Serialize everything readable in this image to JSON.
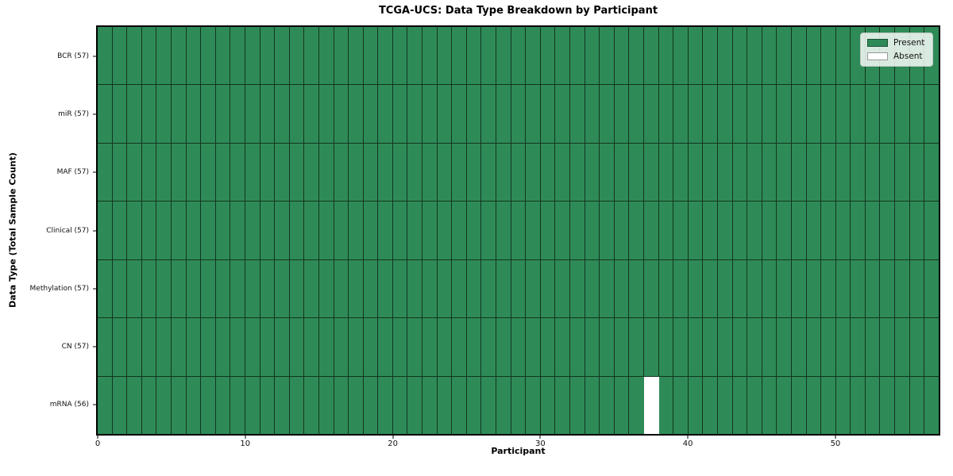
{
  "chart_data": {
    "type": "heatmap",
    "title": "TCGA-UCS: Data Type Breakdown by Participant",
    "xlabel": "Participant",
    "ylabel": "Data Type (Total Sample Count)",
    "n_participants": 57,
    "xlim": [
      0,
      57
    ],
    "x_ticks": [
      0,
      10,
      20,
      30,
      40,
      50
    ],
    "rows": [
      {
        "label": "BCR (57)",
        "data_type": "BCR",
        "total_samples": 57,
        "absent_participants": []
      },
      {
        "label": "miR (57)",
        "data_type": "miR",
        "total_samples": 57,
        "absent_participants": []
      },
      {
        "label": "MAF (57)",
        "data_type": "MAF",
        "total_samples": 57,
        "absent_participants": []
      },
      {
        "label": "Clinical (57)",
        "data_type": "Clinical",
        "total_samples": 57,
        "absent_participants": []
      },
      {
        "label": "Methylation (57)",
        "data_type": "Methylation",
        "total_samples": 57,
        "absent_participants": []
      },
      {
        "label": "CN (57)",
        "data_type": "CN",
        "total_samples": 57,
        "absent_participants": []
      },
      {
        "label": "mRNA (56)",
        "data_type": "mRNA",
        "total_samples": 56,
        "absent_participants": [
          37
        ]
      }
    ],
    "cell_encoding": {
      "present": 1,
      "absent": 0
    },
    "legend": {
      "position": "upper right",
      "entries": [
        {
          "label": "Present",
          "color": "#2e8b57"
        },
        {
          "label": "Absent",
          "color": "#ffffff"
        }
      ]
    },
    "colors": {
      "present": "#2e8b57",
      "absent": "#ffffff",
      "cell_edge": "#14341f",
      "spine": "#000000"
    },
    "grid": "cell-borders",
    "legend_visible": true
  }
}
